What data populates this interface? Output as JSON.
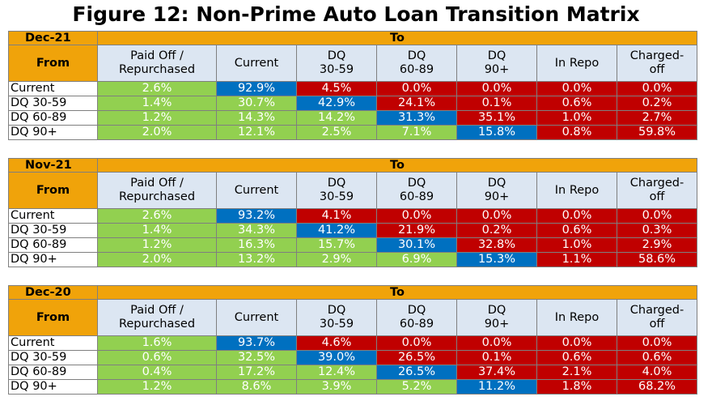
{
  "title": "Figure 12: Non-Prime Auto Loan Transition Matrix",
  "tables": [
    {
      "period": "Dec-21",
      "to_label": "To",
      "from_label": "From",
      "columns": [
        "Paid Off /\nRepurchased",
        "Current",
        "DQ\n30-59",
        "DQ\n60-89",
        "DQ\n90+",
        "In Repo",
        "Charged-\noff"
      ],
      "rows": [
        {
          "label": "Current",
          "values": [
            "2.6%",
            "92.9%",
            "4.5%",
            "0.0%",
            "0.0%",
            "0.0%",
            "0.0%"
          ]
        },
        {
          "label": "DQ 30-59",
          "values": [
            "1.4%",
            "30.7%",
            "42.9%",
            "24.1%",
            "0.1%",
            "0.6%",
            "0.2%"
          ]
        },
        {
          "label": "DQ 60-89",
          "values": [
            "1.2%",
            "14.3%",
            "14.2%",
            "31.3%",
            "35.1%",
            "1.0%",
            "2.7%"
          ]
        },
        {
          "label": "DQ 90+",
          "values": [
            "2.0%",
            "12.1%",
            "2.5%",
            "7.1%",
            "15.8%",
            "0.8%",
            "59.8%"
          ]
        }
      ]
    },
    {
      "period": "Nov-21",
      "to_label": "To",
      "from_label": "From",
      "columns": [
        "Paid Off /\nRepurchased",
        "Current",
        "DQ\n30-59",
        "DQ\n60-89",
        "DQ\n90+",
        "In Repo",
        "Charged-\noff"
      ],
      "rows": [
        {
          "label": "Current",
          "values": [
            "2.6%",
            "93.2%",
            "4.1%",
            "0.0%",
            "0.0%",
            "0.0%",
            "0.0%"
          ]
        },
        {
          "label": "DQ 30-59",
          "values": [
            "1.4%",
            "34.3%",
            "41.2%",
            "21.9%",
            "0.2%",
            "0.6%",
            "0.3%"
          ]
        },
        {
          "label": "DQ 60-89",
          "values": [
            "1.2%",
            "16.3%",
            "15.7%",
            "30.1%",
            "32.8%",
            "1.0%",
            "2.9%"
          ]
        },
        {
          "label": "DQ 90+",
          "values": [
            "2.0%",
            "13.2%",
            "2.9%",
            "6.9%",
            "15.3%",
            "1.1%",
            "58.6%"
          ]
        }
      ]
    },
    {
      "period": "Dec-20",
      "to_label": "To",
      "from_label": "From",
      "columns": [
        "Paid Off /\nRepurchased",
        "Current",
        "DQ\n30-59",
        "DQ\n60-89",
        "DQ\n90+",
        "In Repo",
        "Charged-\noff"
      ],
      "rows": [
        {
          "label": "Current",
          "values": [
            "1.6%",
            "93.7%",
            "4.6%",
            "0.0%",
            "0.0%",
            "0.0%",
            "0.0%"
          ]
        },
        {
          "label": "DQ 30-59",
          "values": [
            "0.6%",
            "32.5%",
            "39.0%",
            "26.5%",
            "0.1%",
            "0.6%",
            "0.6%"
          ]
        },
        {
          "label": "DQ 60-89",
          "values": [
            "0.4%",
            "17.2%",
            "12.4%",
            "26.5%",
            "37.4%",
            "2.1%",
            "4.0%"
          ]
        },
        {
          "label": "DQ 90+",
          "values": [
            "1.2%",
            "8.6%",
            "3.9%",
            "5.2%",
            "11.2%",
            "1.8%",
            "68.2%"
          ]
        }
      ]
    }
  ]
}
